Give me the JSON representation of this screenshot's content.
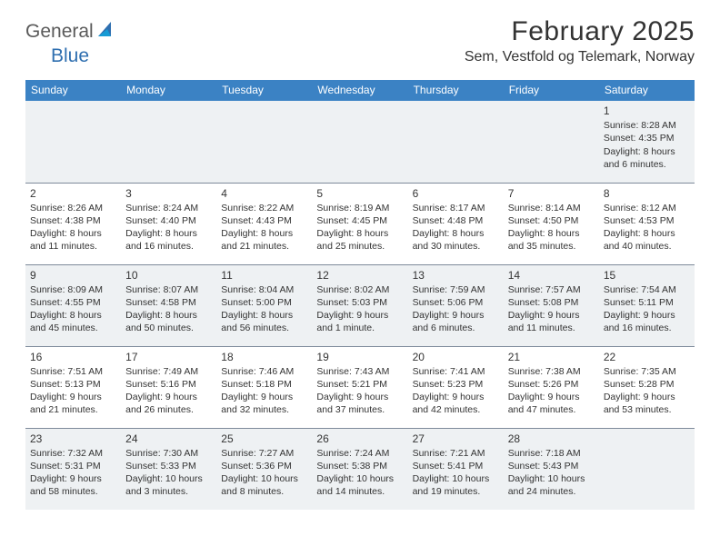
{
  "logo": {
    "text1": "General",
    "text2": "Blue"
  },
  "title": "February 2025",
  "location": "Sem, Vestfold og Telemark, Norway",
  "colors": {
    "header_bg": "#3b82c4",
    "header_text": "#ffffff",
    "border": "#7d8a9a",
    "alt_row_bg": "#eef1f3",
    "text": "#333333",
    "logo_gray": "#5a5a5a",
    "logo_blue": "#2f6fb0"
  },
  "day_headers": [
    "Sunday",
    "Monday",
    "Tuesday",
    "Wednesday",
    "Thursday",
    "Friday",
    "Saturday"
  ],
  "weeks": [
    {
      "alt": true,
      "days": [
        null,
        null,
        null,
        null,
        null,
        null,
        {
          "n": "1",
          "sunrise": "8:28 AM",
          "sunset": "4:35 PM",
          "daylight": "8 hours and 6 minutes."
        }
      ]
    },
    {
      "alt": false,
      "days": [
        {
          "n": "2",
          "sunrise": "8:26 AM",
          "sunset": "4:38 PM",
          "daylight": "8 hours and 11 minutes."
        },
        {
          "n": "3",
          "sunrise": "8:24 AM",
          "sunset": "4:40 PM",
          "daylight": "8 hours and 16 minutes."
        },
        {
          "n": "4",
          "sunrise": "8:22 AM",
          "sunset": "4:43 PM",
          "daylight": "8 hours and 21 minutes."
        },
        {
          "n": "5",
          "sunrise": "8:19 AM",
          "sunset": "4:45 PM",
          "daylight": "8 hours and 25 minutes."
        },
        {
          "n": "6",
          "sunrise": "8:17 AM",
          "sunset": "4:48 PM",
          "daylight": "8 hours and 30 minutes."
        },
        {
          "n": "7",
          "sunrise": "8:14 AM",
          "sunset": "4:50 PM",
          "daylight": "8 hours and 35 minutes."
        },
        {
          "n": "8",
          "sunrise": "8:12 AM",
          "sunset": "4:53 PM",
          "daylight": "8 hours and 40 minutes."
        }
      ]
    },
    {
      "alt": true,
      "days": [
        {
          "n": "9",
          "sunrise": "8:09 AM",
          "sunset": "4:55 PM",
          "daylight": "8 hours and 45 minutes."
        },
        {
          "n": "10",
          "sunrise": "8:07 AM",
          "sunset": "4:58 PM",
          "daylight": "8 hours and 50 minutes."
        },
        {
          "n": "11",
          "sunrise": "8:04 AM",
          "sunset": "5:00 PM",
          "daylight": "8 hours and 56 minutes."
        },
        {
          "n": "12",
          "sunrise": "8:02 AM",
          "sunset": "5:03 PM",
          "daylight": "9 hours and 1 minute."
        },
        {
          "n": "13",
          "sunrise": "7:59 AM",
          "sunset": "5:06 PM",
          "daylight": "9 hours and 6 minutes."
        },
        {
          "n": "14",
          "sunrise": "7:57 AM",
          "sunset": "5:08 PM",
          "daylight": "9 hours and 11 minutes."
        },
        {
          "n": "15",
          "sunrise": "7:54 AM",
          "sunset": "5:11 PM",
          "daylight": "9 hours and 16 minutes."
        }
      ]
    },
    {
      "alt": false,
      "days": [
        {
          "n": "16",
          "sunrise": "7:51 AM",
          "sunset": "5:13 PM",
          "daylight": "9 hours and 21 minutes."
        },
        {
          "n": "17",
          "sunrise": "7:49 AM",
          "sunset": "5:16 PM",
          "daylight": "9 hours and 26 minutes."
        },
        {
          "n": "18",
          "sunrise": "7:46 AM",
          "sunset": "5:18 PM",
          "daylight": "9 hours and 32 minutes."
        },
        {
          "n": "19",
          "sunrise": "7:43 AM",
          "sunset": "5:21 PM",
          "daylight": "9 hours and 37 minutes."
        },
        {
          "n": "20",
          "sunrise": "7:41 AM",
          "sunset": "5:23 PM",
          "daylight": "9 hours and 42 minutes."
        },
        {
          "n": "21",
          "sunrise": "7:38 AM",
          "sunset": "5:26 PM",
          "daylight": "9 hours and 47 minutes."
        },
        {
          "n": "22",
          "sunrise": "7:35 AM",
          "sunset": "5:28 PM",
          "daylight": "9 hours and 53 minutes."
        }
      ]
    },
    {
      "alt": true,
      "days": [
        {
          "n": "23",
          "sunrise": "7:32 AM",
          "sunset": "5:31 PM",
          "daylight": "9 hours and 58 minutes."
        },
        {
          "n": "24",
          "sunrise": "7:30 AM",
          "sunset": "5:33 PM",
          "daylight": "10 hours and 3 minutes."
        },
        {
          "n": "25",
          "sunrise": "7:27 AM",
          "sunset": "5:36 PM",
          "daylight": "10 hours and 8 minutes."
        },
        {
          "n": "26",
          "sunrise": "7:24 AM",
          "sunset": "5:38 PM",
          "daylight": "10 hours and 14 minutes."
        },
        {
          "n": "27",
          "sunrise": "7:21 AM",
          "sunset": "5:41 PM",
          "daylight": "10 hours and 19 minutes."
        },
        {
          "n": "28",
          "sunrise": "7:18 AM",
          "sunset": "5:43 PM",
          "daylight": "10 hours and 24 minutes."
        },
        null
      ]
    }
  ]
}
